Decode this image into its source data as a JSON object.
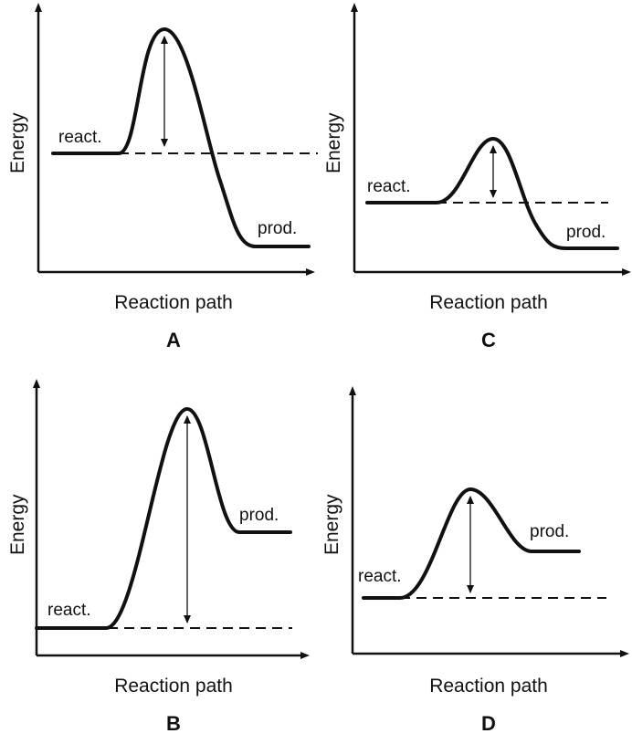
{
  "figure": {
    "panels": [
      {
        "id": "A",
        "letter": "A",
        "y_axis_label": "Energy",
        "x_axis_label": "Reaction path",
        "reactant_label": "react.",
        "product_label": "prod."
      },
      {
        "id": "C",
        "letter": "C",
        "y_axis_label": "Energy",
        "x_axis_label": "Reaction path",
        "reactant_label": "react.",
        "product_label": "prod."
      },
      {
        "id": "B",
        "letter": "B",
        "y_axis_label": "Energy",
        "x_axis_label": "Reaction path",
        "reactant_label": "react.",
        "product_label": "prod."
      },
      {
        "id": "D",
        "letter": "D",
        "y_axis_label": "Energy",
        "x_axis_label": "Reaction path",
        "reactant_label": "react.",
        "product_label": "prod."
      }
    ]
  }
}
